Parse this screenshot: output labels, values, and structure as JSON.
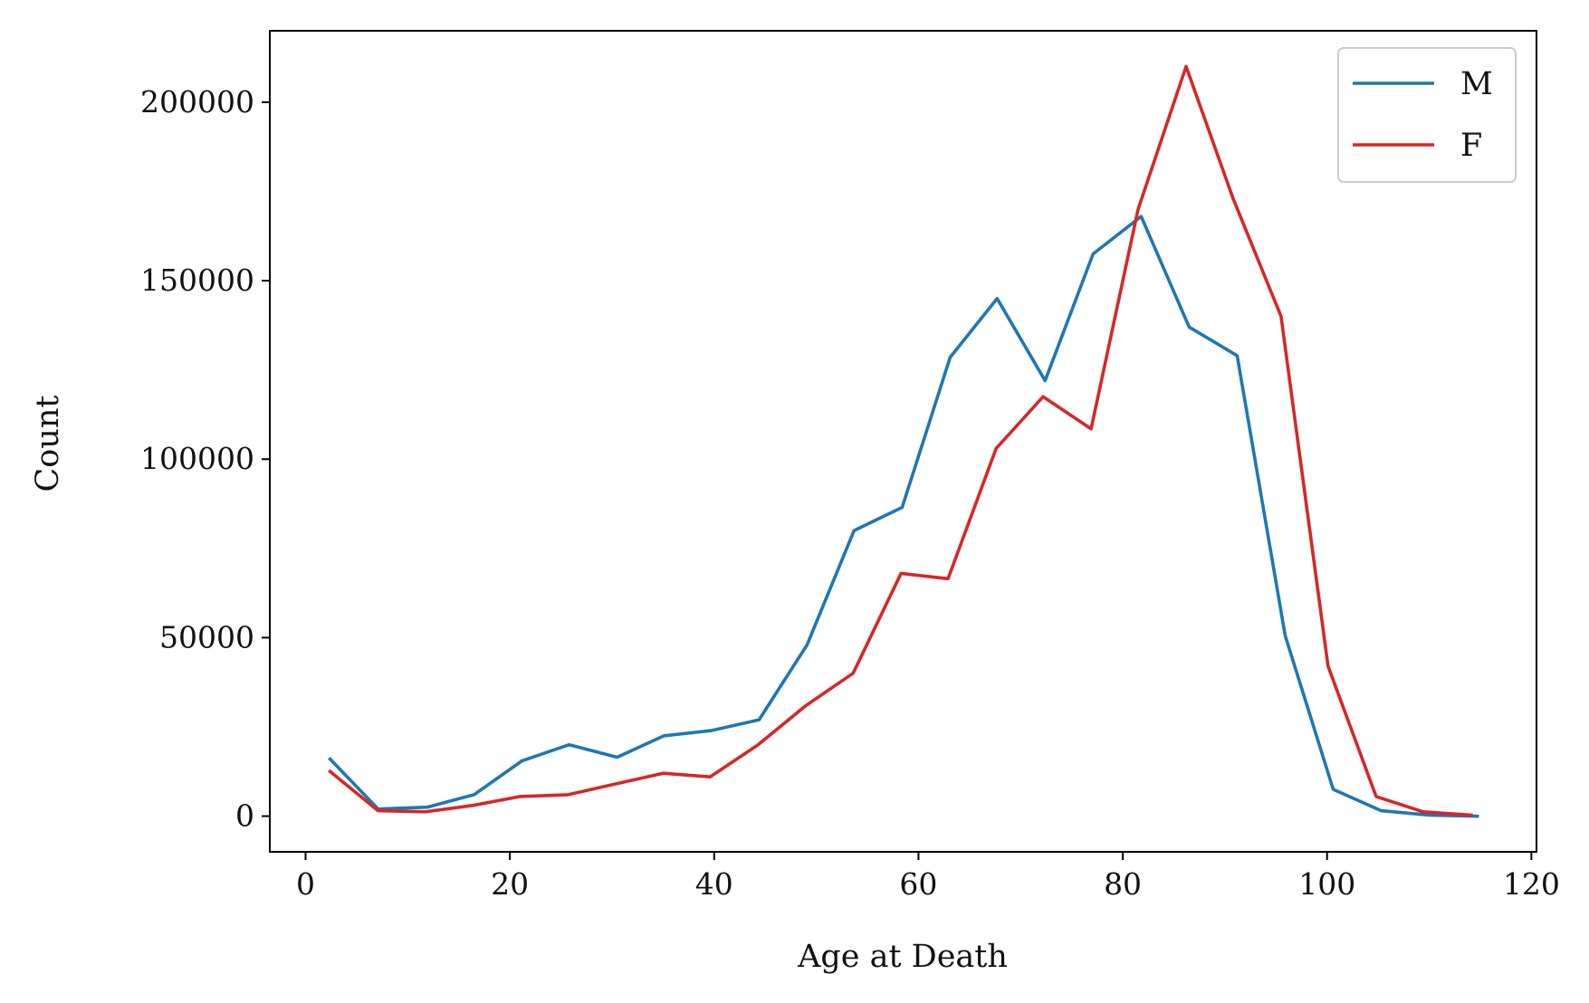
{
  "chart_data": {
    "type": "line",
    "title": "",
    "xlabel": "Age at Death",
    "ylabel": "Count",
    "xlim": [
      -3.5,
      120.5
    ],
    "ylim": [
      -10000,
      220000
    ],
    "xticks": [
      0,
      20,
      40,
      60,
      80,
      100,
      120
    ],
    "yticks": [
      0,
      50000,
      100000,
      150000,
      200000
    ],
    "xtick_labels": [
      "0",
      "20",
      "40",
      "60",
      "80",
      "100",
      "120"
    ],
    "ytick_labels": [
      "0",
      "50000",
      "100000",
      "150000",
      "200000"
    ],
    "grid": false,
    "legend_position": "top-right",
    "series": [
      {
        "name": "M",
        "color": "#1f77b4",
        "x": [
          2.4,
          7.1,
          11.9,
          16.5,
          21.2,
          25.8,
          30.5,
          35.1,
          39.8,
          44.4,
          49.1,
          53.7,
          58.4,
          63.1,
          67.7,
          72.4,
          77.1,
          81.8,
          86.5,
          91.2,
          95.9,
          100.6,
          105.3,
          110.0,
          114.7
        ],
        "y": [
          16000,
          2000,
          2500,
          6000,
          15500,
          20000,
          16500,
          22500,
          24000,
          27000,
          48000,
          80000,
          86500,
          128500,
          145000,
          122000,
          157500,
          168000,
          137000,
          129000,
          50500,
          7500,
          1500,
          300,
          0
        ]
      },
      {
        "name": "F",
        "color": "#d62728",
        "x": [
          2.4,
          7.1,
          11.7,
          16.4,
          21.0,
          25.7,
          30.3,
          35.0,
          39.6,
          44.3,
          49.0,
          53.6,
          58.3,
          62.9,
          67.6,
          72.2,
          76.9,
          81.5,
          86.2,
          90.8,
          95.5,
          100.1,
          104.8,
          109.4,
          114.1
        ],
        "y": [
          12500,
          1500,
          1200,
          3000,
          5500,
          6000,
          9000,
          12000,
          11000,
          20000,
          31000,
          40000,
          68000,
          66500,
          103000,
          117500,
          108500,
          170000,
          210000,
          173000,
          140000,
          42000,
          5500,
          1200,
          300
        ]
      }
    ]
  }
}
